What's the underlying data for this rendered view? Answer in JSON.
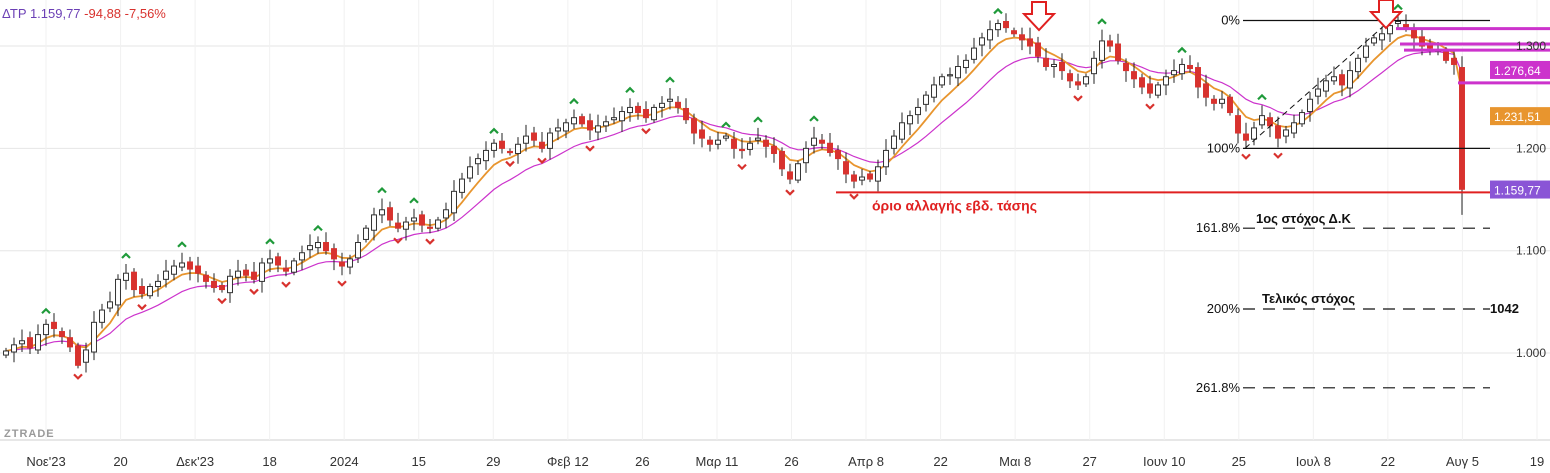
{
  "ticker": {
    "symbol": "ΔΤΡ",
    "price": "1.159,77",
    "change": "-94,88",
    "change_pct": "-7,56%"
  },
  "watermark": "ZTRADE",
  "colors": {
    "up_candle": "#ffffff",
    "down_candle": "#d8322e",
    "ema_fast": "#e8952e",
    "ema_slow": "#cc33cc",
    "grid": "#e6e6e6",
    "annotation_red": "#e02020",
    "price_tag": "#8a55d6"
  },
  "chart_data": {
    "type": "candlestick",
    "x_labels": [
      "Νοε'23",
      "20",
      "Δεκ'23",
      "18",
      "2024",
      "15",
      "29",
      "Φεβ 12",
      "26",
      "Μαρ 11",
      "26",
      "Απρ 8",
      "22",
      "Μαι 8",
      "27",
      "Ιουν 10",
      "25",
      "Ιουλ 8",
      "22",
      "Αυγ 5",
      "19"
    ],
    "y_ticks": [
      "1.300",
      "1.200",
      "1.100",
      "1.000"
    ],
    "y_tick_values": [
      1300,
      1200,
      1100,
      1000
    ],
    "ylim": [
      915,
      1345
    ],
    "price_tags": [
      {
        "label": "1.276,64",
        "value": 1276.64,
        "color": "#cc33cc"
      },
      {
        "label": "1.231,51",
        "value": 1231.51,
        "color": "#e8952e"
      },
      {
        "label": "1.159,77",
        "value": 1159.77,
        "color": "#8a55d6"
      }
    ],
    "close": [
      1002,
      1008,
      1012,
      1005,
      1018,
      1028,
      1024,
      1016,
      1006,
      988,
      1003,
      1030,
      1042,
      1050,
      1072,
      1078,
      1062,
      1058,
      1065,
      1070,
      1080,
      1085,
      1088,
      1082,
      1078,
      1070,
      1064,
      1062,
      1075,
      1080,
      1076,
      1072,
      1088,
      1092,
      1086,
      1080,
      1090,
      1098,
      1105,
      1108,
      1100,
      1092,
      1085,
      1092,
      1108,
      1122,
      1135,
      1140,
      1130,
      1122,
      1128,
      1132,
      1125,
      1122,
      1130,
      1140,
      1158,
      1170,
      1182,
      1190,
      1198,
      1205,
      1200,
      1196,
      1204,
      1212,
      1208,
      1200,
      1215,
      1220,
      1225,
      1230,
      1224,
      1218,
      1222,
      1226,
      1230,
      1236,
      1240,
      1235,
      1230,
      1240,
      1244,
      1248,
      1240,
      1228,
      1215,
      1210,
      1204,
      1208,
      1212,
      1200,
      1198,
      1205,
      1210,
      1202,
      1195,
      1180,
      1170,
      1185,
      1200,
      1210,
      1205,
      1196,
      1190,
      1175,
      1168,
      1172,
      1170,
      1182,
      1198,
      1212,
      1225,
      1232,
      1240,
      1252,
      1262,
      1270,
      1272,
      1280,
      1286,
      1298,
      1308,
      1316,
      1322,
      1318,
      1312,
      1306,
      1300,
      1290,
      1280,
      1282,
      1276,
      1266,
      1262,
      1270,
      1288,
      1305,
      1300,
      1286,
      1276,
      1268,
      1260,
      1254,
      1262,
      1270,
      1276,
      1282,
      1278,
      1260,
      1250,
      1244,
      1248,
      1235,
      1215,
      1208,
      1220,
      1232,
      1222,
      1210,
      1218,
      1225,
      1235,
      1248,
      1258,
      1266,
      1270,
      1262,
      1276,
      1288,
      1300,
      1308,
      1312,
      1320,
      1324,
      1318,
      1308,
      1300,
      1298,
      1296,
      1286,
      1282,
      1160
    ],
    "series": [
      {
        "name": "",
        "kind": "ema_fast"
      },
      {
        "name": "",
        "kind": "ema_slow"
      }
    ],
    "annotations": {
      "fib_levels": [
        {
          "label": "0%",
          "value": 1325
        },
        {
          "label": "100%",
          "value": 1200
        },
        {
          "label": "161.8%",
          "value": 1122
        },
        {
          "label": "200%",
          "value": 1043
        },
        {
          "label": "261.8%",
          "value": 966
        }
      ],
      "trend_line_label": "όριο αλλαγής εβδ. τάσης",
      "trend_line_value": 1157,
      "target1_label": "1ος στόχος Δ.Κ",
      "target_final_label": "Τελικός στόχος",
      "target_final_value": "1042"
    }
  }
}
